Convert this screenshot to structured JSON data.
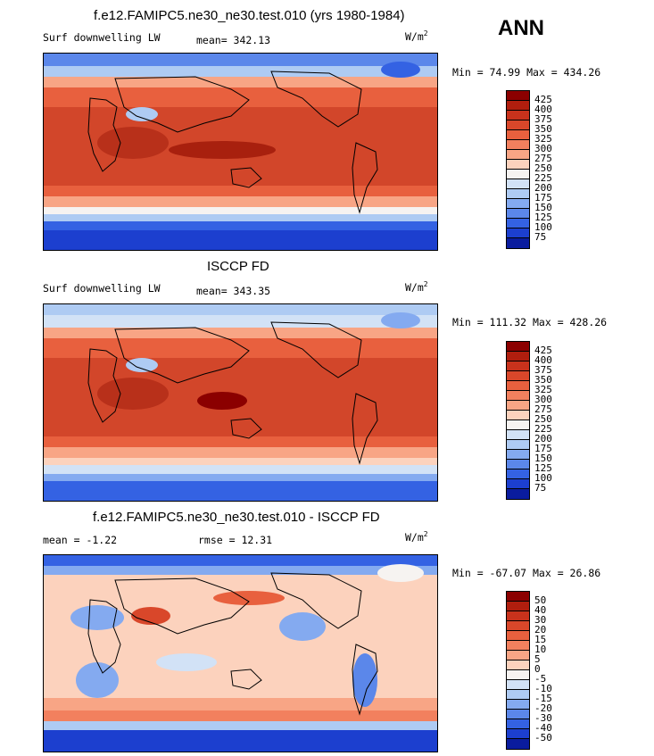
{
  "season": "ANN",
  "panels": [
    {
      "title": "f.e12.FAMIPC5.ne30_ne30.test.010 (yrs 1980-1984)",
      "left_label": "Surf downwelling LW",
      "stat_label": "mean= 342.13",
      "units_base": "W/m",
      "units_exp": "2",
      "minmax": "Min =  74.99 Max = 434.26",
      "levels": [
        "425",
        "400",
        "375",
        "350",
        "325",
        "300",
        "275",
        "250",
        "225",
        "200",
        "175",
        "150",
        "125",
        "100",
        "75"
      ],
      "colors": [
        "#8b0000",
        "#b01e0e",
        "#c8321c",
        "#d9472a",
        "#e8603e",
        "#f2805e",
        "#f8a585",
        "#fcd2bd",
        "#f6f3f1",
        "#d2e2f6",
        "#aecbf3",
        "#84aaf0",
        "#5b87ea",
        "#3462e3",
        "#1c3fcf",
        "#0a1c9e"
      ]
    },
    {
      "title": "ISCCP FD",
      "left_label": "Surf downwelling LW",
      "stat_label": "mean= 343.35",
      "units_base": "W/m",
      "units_exp": "2",
      "minmax": "Min = 111.32 Max = 428.26",
      "levels": [
        "425",
        "400",
        "375",
        "350",
        "325",
        "300",
        "275",
        "250",
        "225",
        "200",
        "175",
        "150",
        "125",
        "100",
        "75"
      ],
      "colors": [
        "#8b0000",
        "#b01e0e",
        "#c8321c",
        "#d9472a",
        "#e8603e",
        "#f2805e",
        "#f8a585",
        "#fcd2bd",
        "#f6f3f1",
        "#d2e2f6",
        "#aecbf3",
        "#84aaf0",
        "#5b87ea",
        "#3462e3",
        "#1c3fcf",
        "#0a1c9e"
      ]
    },
    {
      "title": "f.e12.FAMIPC5.ne30_ne30.test.010 - ISCCP FD",
      "left_label": "mean =  -1.22",
      "stat_label": "rmse =  12.31",
      "units_base": "W/m",
      "units_exp": "2",
      "minmax": "Min = -67.07 Max =  26.86",
      "levels": [
        "50",
        "40",
        "30",
        "20",
        "15",
        "10",
        "5",
        "0",
        "-5",
        "-10",
        "-15",
        "-20",
        "-30",
        "-40",
        "-50"
      ],
      "colors": [
        "#8b0000",
        "#b01e0e",
        "#c8321c",
        "#d9472a",
        "#e8603e",
        "#f2805e",
        "#f8a585",
        "#fcd2bd",
        "#f6f3f1",
        "#d2e2f6",
        "#aecbf3",
        "#84aaf0",
        "#5b87ea",
        "#3462e3",
        "#1c3fcf",
        "#0a1c9e"
      ]
    }
  ]
}
